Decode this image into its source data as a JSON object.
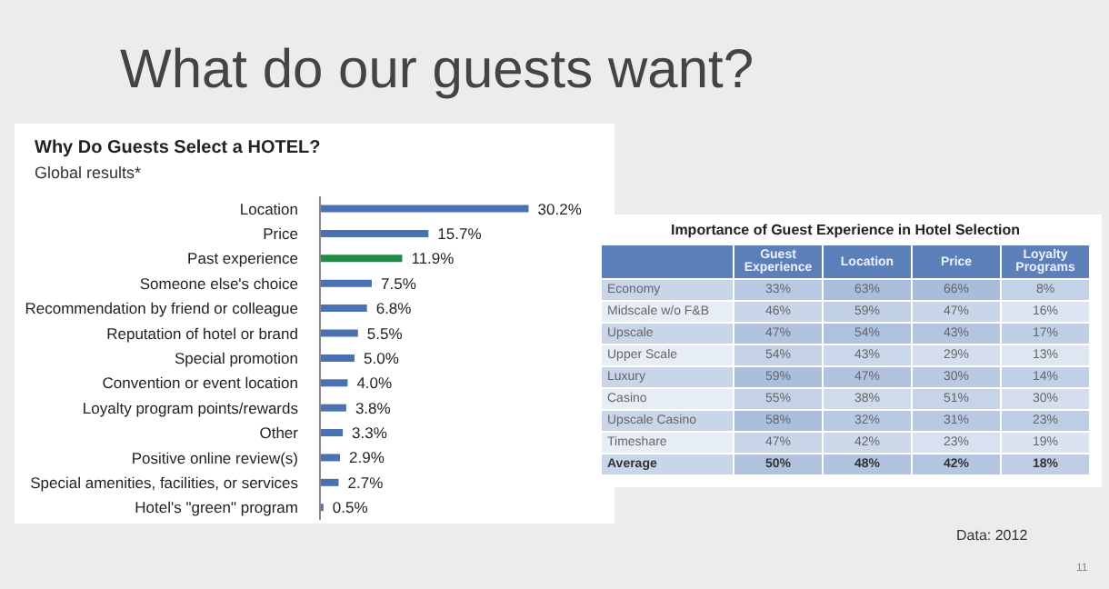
{
  "chart_data": [
    {
      "type": "bar",
      "orientation": "horizontal",
      "title": "What do our guests want?",
      "subtitle": "Why Do Guests Select a HOTEL?",
      "annotations": [
        "Global results*"
      ],
      "categories": [
        "Location",
        "Price",
        "Past experience",
        "Someone else's choice",
        "Recommendation by friend or colleague",
        "Reputation of hotel or brand",
        "Special promotion",
        "Convention or event location",
        "Loyalty program points/rewards",
        "Other",
        "Positive online review(s)",
        "Special amenities, facilities, or services",
        "Hotel's \"green\" program"
      ],
      "values": [
        30.2,
        15.7,
        11.9,
        7.5,
        6.8,
        5.5,
        5.0,
        4.0,
        3.8,
        3.3,
        2.9,
        2.7,
        0.5
      ],
      "value_labels": [
        "30.2%",
        "15.7%",
        "11.9%",
        "7.5%",
        "6.8%",
        "5.5%",
        "5.0%",
        "4.0%",
        "3.8%",
        "3.3%",
        "2.9%",
        "2.7%",
        "0.5%"
      ],
      "colors": [
        "#4a72b0",
        "#4a72b0",
        "#1e8c45",
        "#4a72b0",
        "#4a72b0",
        "#4a72b0",
        "#4a72b0",
        "#4a72b0",
        "#4a72b0",
        "#4a72b0",
        "#4a72b0",
        "#4a72b0",
        "#4a72b0"
      ]
    },
    {
      "type": "heatmap",
      "title": "Importance of Guest Experience in Hotel Selection",
      "annotations": [
        "Data: 2012",
        "11"
      ],
      "categories": [
        "Guest Experience",
        "Location",
        "Price",
        "Loyalty Programs"
      ],
      "y_categories": [
        "Economy",
        "Midscale w/o F&B",
        "Upscale",
        "Upper Scale",
        "Luxury",
        "Casino",
        "Upscale Casino",
        "Timeshare",
        "Average"
      ],
      "cells": [
        [
          33,
          63,
          66,
          8
        ],
        [
          46,
          59,
          47,
          16
        ],
        [
          47,
          54,
          43,
          17
        ],
        [
          54,
          43,
          29,
          13
        ],
        [
          59,
          47,
          30,
          14
        ],
        [
          55,
          38,
          51,
          30
        ],
        [
          58,
          32,
          31,
          23
        ],
        [
          47,
          42,
          23,
          19
        ],
        [
          50,
          48,
          42,
          18
        ]
      ],
      "cell_labels": [
        [
          "33%",
          "63%",
          "66%",
          "8%"
        ],
        [
          "46%",
          "59%",
          "47%",
          "16%"
        ],
        [
          "47%",
          "54%",
          "43%",
          "17%"
        ],
        [
          "54%",
          "43%",
          "29%",
          "13%"
        ],
        [
          "59%",
          "47%",
          "30%",
          "14%"
        ],
        [
          "55%",
          "38%",
          "51%",
          "30%"
        ],
        [
          "58%",
          "32%",
          "31%",
          "23%"
        ],
        [
          "47%",
          "42%",
          "23%",
          "19%"
        ],
        [
          "50%",
          "48%",
          "42%",
          "18%"
        ]
      ]
    }
  ]
}
